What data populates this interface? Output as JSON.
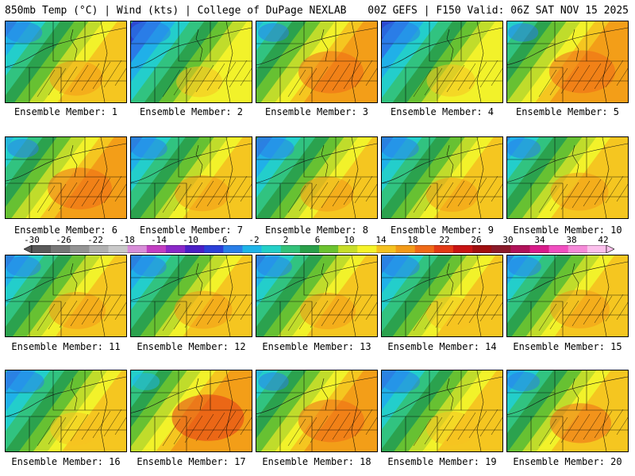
{
  "header": {
    "left": "850mb Temp (°C) | Wind (kts) | College of DuPage NEXLAB",
    "right": "00Z GEFS | F150 Valid: 06Z SAT NOV 15 2025"
  },
  "colorbar": {
    "labels": [
      "-30",
      "-26",
      "-22",
      "-18",
      "-14",
      "-10",
      "-6",
      "-2",
      "2",
      "6",
      "10",
      "14",
      "18",
      "22",
      "26",
      "30",
      "34",
      "38",
      "42"
    ],
    "colors": [
      "#5a5a5a",
      "#777777",
      "#939393",
      "#b0b0b0",
      "#c9c9c9",
      "#d88ed8",
      "#c23ec2",
      "#8a28c8",
      "#4b1fc6",
      "#2b3fd8",
      "#2a7fe8",
      "#1fb4e8",
      "#24d0c8",
      "#33c27a",
      "#2aa04a",
      "#6cc330",
      "#c8de2a",
      "#f6f32a",
      "#f5c220",
      "#f29a18",
      "#ef6a18",
      "#e33a16",
      "#c81414",
      "#a00f10",
      "#8a1a2a",
      "#b0125a",
      "#d81b8a",
      "#f04ec0",
      "#f58ad8",
      "#fbc0ec"
    ]
  },
  "members": [
    {
      "label": "Ensemble Member: 1"
    },
    {
      "label": "Ensemble Member: 2"
    },
    {
      "label": "Ensemble Member: 3"
    },
    {
      "label": "Ensemble Member: 4"
    },
    {
      "label": "Ensemble Member: 5"
    },
    {
      "label": "Ensemble Member: 6"
    },
    {
      "label": "Ensemble Member: 7"
    },
    {
      "label": "Ensemble Member: 8"
    },
    {
      "label": "Ensemble Member: 9"
    },
    {
      "label": "Ensemble Member: 10"
    },
    {
      "label": "Ensemble Member: 11"
    },
    {
      "label": "Ensemble Member: 12"
    },
    {
      "label": "Ensemble Member: 13"
    },
    {
      "label": "Ensemble Member: 14"
    },
    {
      "label": "Ensemble Member: 15"
    },
    {
      "label": "Ensemble Member: 16"
    },
    {
      "label": "Ensemble Member: 17"
    },
    {
      "label": "Ensemble Member: 18"
    },
    {
      "label": "Ensemble Member: 19"
    },
    {
      "label": "Ensemble Member: 20"
    }
  ]
}
